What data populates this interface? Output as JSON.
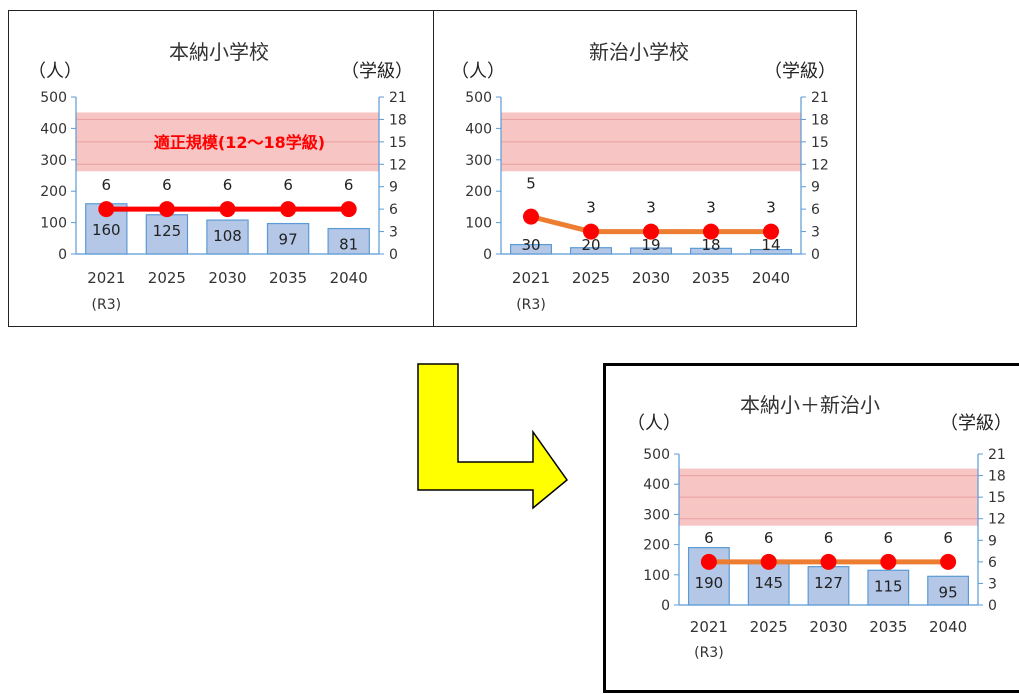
{
  "colors": {
    "bar_fill": "#b4c7e7",
    "bar_stroke": "#5b9bd5",
    "axis": "#5b9bd5",
    "band_fill": "#f8c5c5",
    "band_line": "#e7a0a0",
    "line_red": "#ff0000",
    "line_orange": "#ed7d31",
    "marker": "#ff0000",
    "arrow_fill": "#ffff00",
    "label_red": "#ff0000"
  },
  "chart_data": [
    {
      "type": "bar+line",
      "title": "本納小学校",
      "ylabel_left": "（人）",
      "ylabel_right": "（学級）",
      "categories": [
        "2021",
        "2025",
        "2030",
        "2035",
        "2040"
      ],
      "category_sublabels": [
        "(R3)",
        "",
        "",
        "",
        ""
      ],
      "ylim_left": [
        0,
        500
      ],
      "yticks_left": [
        "0",
        "100",
        "200",
        "300",
        "400",
        "500"
      ],
      "ylim_right": [
        0,
        21
      ],
      "yticks_right": [
        "0",
        "3",
        "6",
        "9",
        "12",
        "15",
        "18",
        "21"
      ],
      "bars": {
        "values": [
          160,
          125,
          108,
          97,
          81
        ]
      },
      "line": {
        "values": [
          6,
          6,
          6,
          6,
          6
        ],
        "color": "#ff0000"
      },
      "band": {
        "range_classes": [
          12,
          18
        ],
        "label": "適正規模(12～18学級)"
      }
    },
    {
      "type": "bar+line",
      "title": "新治小学校",
      "ylabel_left": "（人）",
      "ylabel_right": "（学級）",
      "categories": [
        "2021",
        "2025",
        "2030",
        "2035",
        "2040"
      ],
      "category_sublabels": [
        "(R3)",
        "",
        "",
        "",
        ""
      ],
      "ylim_left": [
        0,
        500
      ],
      "yticks_left": [
        "0",
        "100",
        "200",
        "300",
        "400",
        "500"
      ],
      "ylim_right": [
        0,
        21
      ],
      "yticks_right": [
        "0",
        "3",
        "6",
        "9",
        "12",
        "15",
        "18",
        "21"
      ],
      "bars": {
        "values": [
          30,
          20,
          19,
          18,
          14
        ]
      },
      "line": {
        "values": [
          5,
          3,
          3,
          3,
          3
        ],
        "color": "#ed7d31"
      },
      "band": {
        "range_classes": [
          12,
          18
        ],
        "label": ""
      }
    },
    {
      "type": "bar+line",
      "title": "本納小＋新治小",
      "ylabel_left": "（人）",
      "ylabel_right": "（学級）",
      "categories": [
        "2021",
        "2025",
        "2030",
        "2035",
        "2040"
      ],
      "category_sublabels": [
        "(R3)",
        "",
        "",
        "",
        ""
      ],
      "ylim_left": [
        0,
        500
      ],
      "yticks_left": [
        "0",
        "100",
        "200",
        "300",
        "400",
        "500"
      ],
      "ylim_right": [
        0,
        21
      ],
      "yticks_right": [
        "0",
        "3",
        "6",
        "9",
        "12",
        "15",
        "18",
        "21"
      ],
      "bars": {
        "values": [
          190,
          145,
          127,
          115,
          95
        ]
      },
      "line": {
        "values": [
          6,
          6,
          6,
          6,
          6
        ],
        "color": "#ed7d31"
      },
      "band": {
        "range_classes": [
          12,
          18
        ],
        "label": ""
      }
    }
  ]
}
